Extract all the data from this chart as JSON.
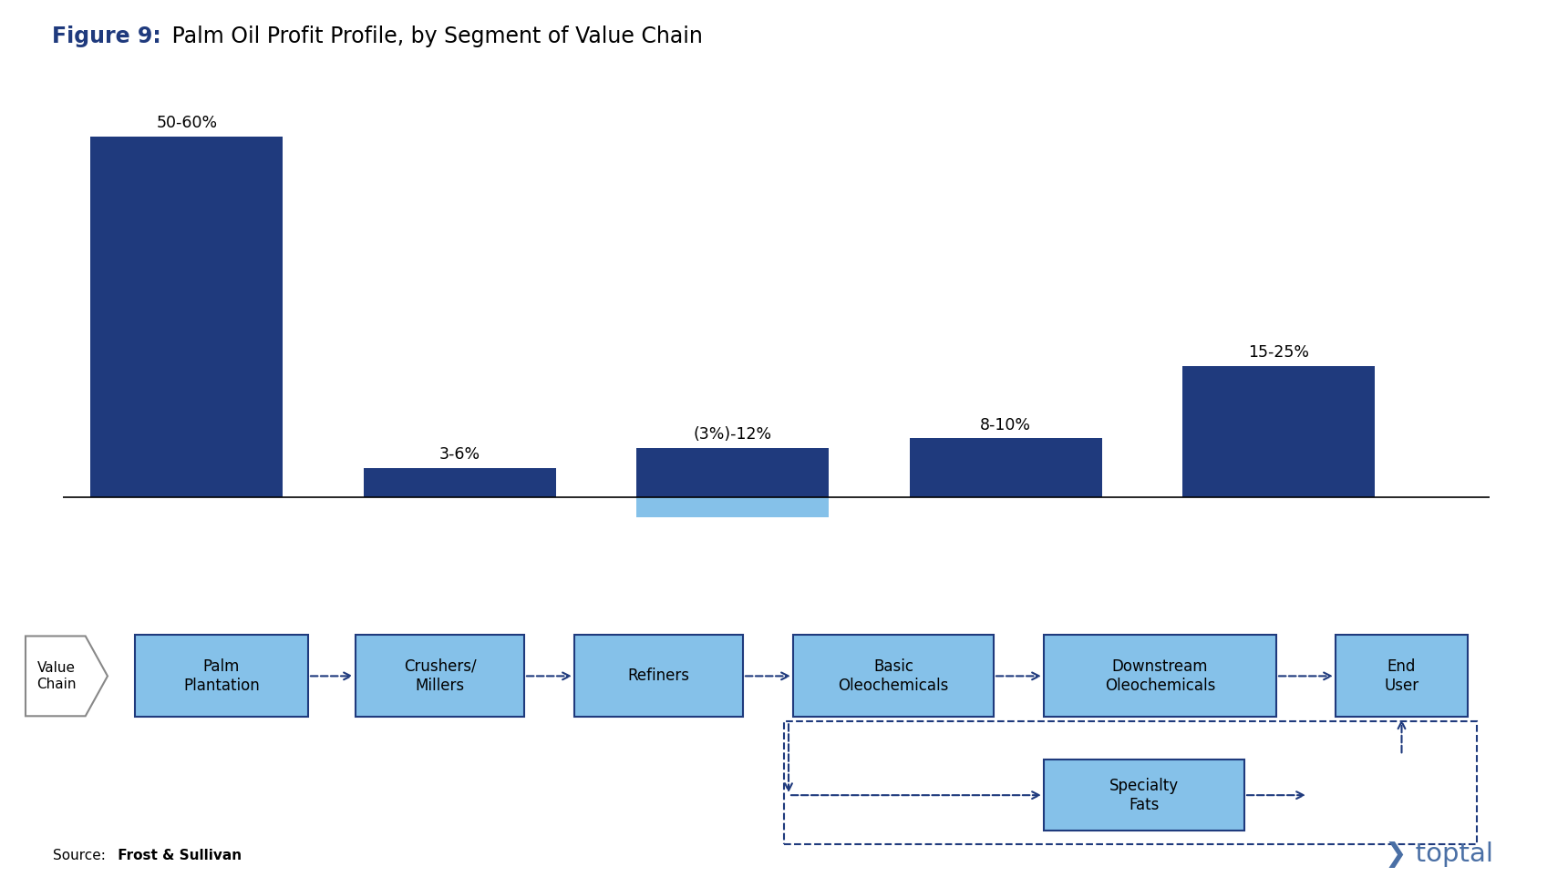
{
  "title_bold": "Figure 9:",
  "title_rest": " Palm Oil Profit Profile, by Segment of Value Chain",
  "title_fontsize": 17,
  "bar_labels": [
    "50-60%",
    "3-6%",
    "(3%)-12%",
    "8-10%",
    "15-25%"
  ],
  "bar_values": [
    55,
    4.5,
    7.5,
    9,
    20
  ],
  "bar_neg_values": [
    0,
    0,
    3.0,
    0,
    0
  ],
  "bar_color_dark": "#1F3A7D",
  "bar_color_light": "#85C1E9",
  "box_color": "#85C1E9",
  "box_border_color": "#1F3A7D",
  "source_label": "Source:",
  "source_value": " Frost & Sullivan",
  "background_color": "#FFFFFF",
  "toptal_color": "#4A6FA5"
}
